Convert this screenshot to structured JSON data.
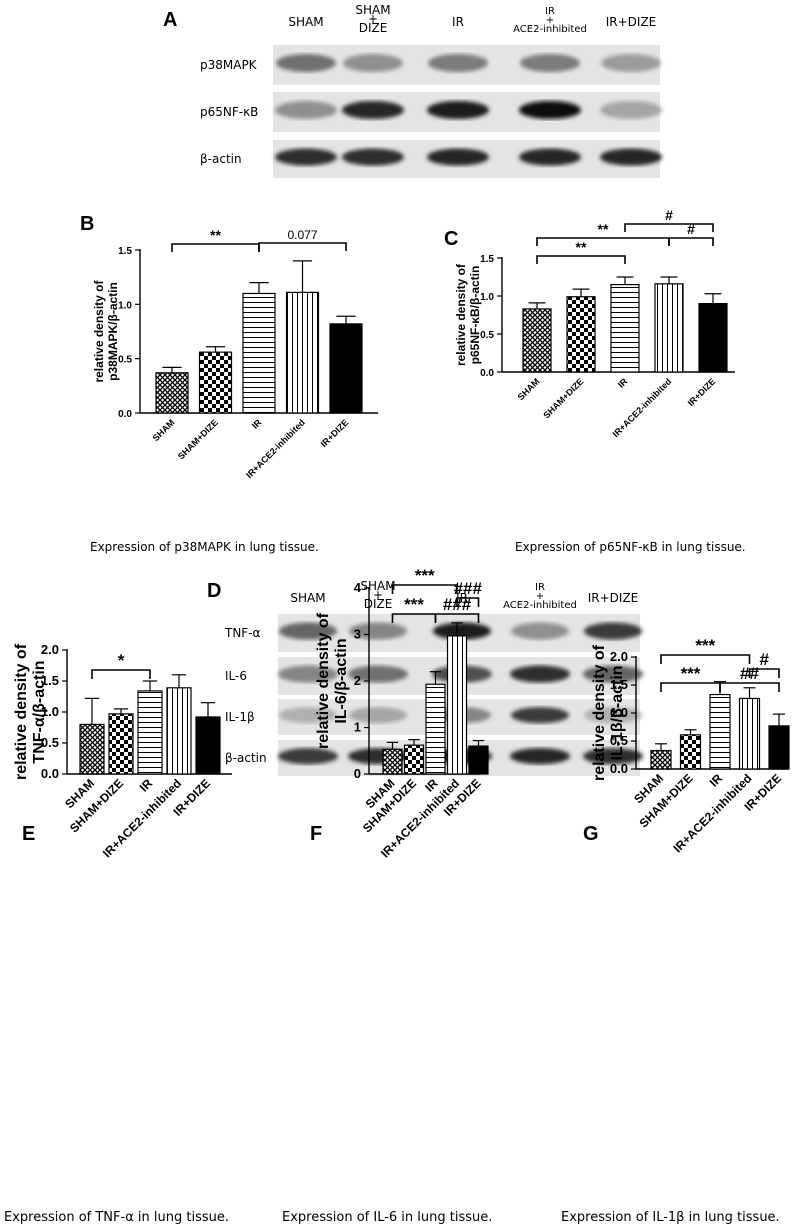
{
  "panel_letters": {
    "A": "A",
    "B": "B",
    "C": "C",
    "D": "D",
    "E": "E",
    "F": "F",
    "G": "G"
  },
  "blot_A": {
    "lanes": [
      "SHAM",
      "SHAM\n+\nDIZE",
      "IR",
      "IR\n+\nACE2-inhibited",
      "IR+DIZE"
    ],
    "rows": [
      {
        "label": "p38MAPK",
        "intensity": [
          0.55,
          0.4,
          0.5,
          0.5,
          0.35
        ]
      },
      {
        "label": "p65NF-κB",
        "intensity": [
          0.4,
          0.9,
          0.95,
          1.0,
          0.3
        ]
      },
      {
        "label": "β-actin",
        "intensity": [
          0.85,
          0.85,
          0.9,
          0.9,
          0.9
        ]
      }
    ]
  },
  "blot_D": {
    "lanes": [
      "SHAM",
      "SHAM\n+\nDIZE",
      "IR",
      "IR\n+\nACE2-inhibited",
      "IR+DIZE"
    ],
    "rows": [
      {
        "label": "TNF-α",
        "intensity": [
          0.6,
          0.45,
          0.95,
          0.4,
          0.8
        ]
      },
      {
        "label": "IL-6",
        "intensity": [
          0.45,
          0.55,
          0.7,
          0.85,
          0.6
        ]
      },
      {
        "label": "IL-1β",
        "intensity": [
          0.25,
          0.3,
          0.45,
          0.8,
          0.25
        ]
      },
      {
        "label": "β-actin",
        "intensity": [
          0.8,
          0.85,
          0.9,
          0.9,
          0.85
        ]
      }
    ]
  },
  "captions": {
    "B": "Expression of p38MAPK in lung tissue.",
    "C": "Expression of p65NF-κB in lung tissue.",
    "E": "Expression of TNF-α in lung tissue.",
    "F": "Expression of IL-6 in lung tissue.",
    "G": "Expression of IL-1β in lung tissue."
  },
  "chart_data": [
    {
      "id": "B",
      "type": "bar",
      "categories": [
        "SHAM",
        "SHAM+DIZE",
        "IR",
        "IR+ACE2-inhibited",
        "IR+DIZE"
      ],
      "values": [
        0.37,
        0.56,
        1.1,
        1.11,
        0.82
      ],
      "errors": [
        0.05,
        0.05,
        0.1,
        0.29,
        0.07
      ],
      "ylabel": "relative density of\np38MAPK/β-actin",
      "ylim": [
        0,
        1.5
      ],
      "yticks": [
        "0.0",
        "0.5",
        "1.0",
        "1.5"
      ],
      "patterns": [
        "diamond",
        "checker",
        "hstripe",
        "vstripe",
        "solid"
      ],
      "annotations": [
        {
          "from": 0,
          "to": 2,
          "label": "**"
        },
        {
          "from": 2,
          "to": 4,
          "label": "0.077"
        }
      ]
    },
    {
      "id": "C",
      "type": "bar",
      "categories": [
        "SHAM",
        "SHAM+DIZE",
        "IR",
        "IR+ACE2-inhibited",
        "IR+DIZE"
      ],
      "values": [
        0.83,
        0.99,
        1.15,
        1.16,
        0.9
      ],
      "errors": [
        0.08,
        0.1,
        0.1,
        0.09,
        0.13
      ],
      "ylabel": "relative density of\np65NF-κB/β-actin",
      "ylim": [
        0,
        1.5
      ],
      "yticks": [
        "0.0",
        "0.5",
        "1.0",
        "1.5"
      ],
      "patterns": [
        "diamond",
        "checker",
        "hstripe",
        "vstripe",
        "solid"
      ],
      "annotations": [
        {
          "from": 0,
          "to": 2,
          "label": "**"
        },
        {
          "from": 0,
          "to": 3,
          "label": "**"
        },
        {
          "from": 3,
          "to": 4,
          "label": "#"
        },
        {
          "from": 2,
          "to": 4,
          "label": "#"
        }
      ]
    },
    {
      "id": "E",
      "type": "bar",
      "categories": [
        "SHAM",
        "SHAM+DIZE",
        "IR",
        "IR+ACE2-inhibited",
        "IR+DIZE"
      ],
      "values": [
        0.8,
        0.97,
        1.34,
        1.39,
        0.92
      ],
      "errors": [
        0.42,
        0.08,
        0.16,
        0.21,
        0.23
      ],
      "ylabel": "relative density of\nTNF-α/β-actin",
      "ylim": [
        0,
        2.0
      ],
      "yticks": [
        "0.0",
        "0.5",
        "1.0",
        "1.5",
        "2.0"
      ],
      "patterns": [
        "diamond",
        "checker",
        "hstripe",
        "vstripe",
        "solid"
      ],
      "annotations": [
        {
          "from": 0,
          "to": 2,
          "label": "*"
        }
      ]
    },
    {
      "id": "F",
      "type": "bar",
      "categories": [
        "SHAM",
        "SHAM+DIZE",
        "IR",
        "IR+ACE2-inhibited",
        "IR+DIZE"
      ],
      "values": [
        0.53,
        0.62,
        1.93,
        2.97,
        0.6
      ],
      "errors": [
        0.15,
        0.12,
        0.27,
        0.28,
        0.12
      ],
      "ylabel": "relative density of\nIL-6/β-actin",
      "ylim": [
        0,
        4
      ],
      "yticks": [
        "0",
        "1",
        "2",
        "3",
        "4"
      ],
      "patterns": [
        "diamond",
        "checker",
        "hstripe",
        "vstripe",
        "solid"
      ],
      "annotations": [
        {
          "from": 0,
          "to": 2,
          "label": "***"
        },
        {
          "from": 0,
          "to": 3,
          "label": "***"
        },
        {
          "from": 3,
          "to": 4,
          "label": "###"
        },
        {
          "from": 2,
          "to": 4,
          "label": "###"
        }
      ]
    },
    {
      "id": "G",
      "type": "bar",
      "categories": [
        "SHAM",
        "SHAM+DIZE",
        "IR",
        "IR+ACE2-inhibited",
        "IR+DIZE"
      ],
      "values": [
        0.33,
        0.61,
        1.33,
        1.26,
        0.77
      ],
      "errors": [
        0.12,
        0.09,
        0.23,
        0.19,
        0.21
      ],
      "ylabel": "relative density of\nIL-1β/β-actin",
      "ylim": [
        0,
        2.0
      ],
      "yticks": [
        "0.0",
        "0.5",
        "1.0",
        "1.5",
        "2.0"
      ],
      "patterns": [
        "diamond",
        "checker",
        "hstripe",
        "vstripe",
        "solid"
      ],
      "annotations": [
        {
          "from": 0,
          "to": 2,
          "label": "***"
        },
        {
          "from": 0,
          "to": 3,
          "label": "***"
        },
        {
          "from": 3,
          "to": 4,
          "label": "#"
        },
        {
          "from": 2,
          "to": 4,
          "label": "##"
        }
      ]
    }
  ]
}
